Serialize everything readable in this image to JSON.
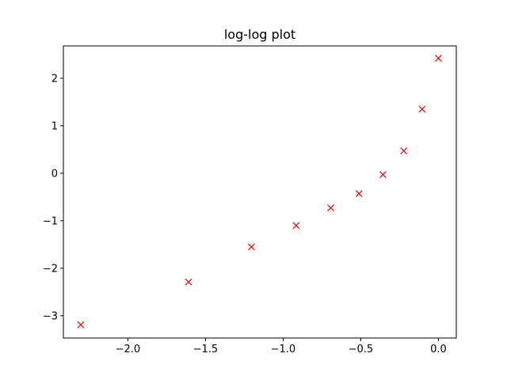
{
  "chart_data": {
    "type": "scatter",
    "title": "log-log plot",
    "xlabel": "",
    "ylabel": "",
    "xlim": [
      -2.415,
      0.115
    ],
    "ylim": [
      -3.47,
      2.68
    ],
    "marker": "x",
    "marker_color": "#ff0000",
    "grid": false,
    "x_ticks": [
      -2.0,
      -1.5,
      -1.0,
      -0.5,
      0.0
    ],
    "x_tick_labels": [
      "−2.0",
      "−1.5",
      "−1.0",
      "−0.5",
      "0.0"
    ],
    "y_ticks": [
      2,
      1,
      0,
      -1,
      -2,
      -3
    ],
    "y_tick_labels": [
      "2",
      "1",
      "0",
      "−1",
      "−2",
      "−3"
    ],
    "points": [
      {
        "x": -2.303,
        "y": -3.19
      },
      {
        "x": -1.609,
        "y": -2.29
      },
      {
        "x": -1.204,
        "y": -1.55
      },
      {
        "x": -0.916,
        "y": -1.1
      },
      {
        "x": -0.693,
        "y": -0.73
      },
      {
        "x": -0.511,
        "y": -0.43
      },
      {
        "x": -0.357,
        "y": -0.03
      },
      {
        "x": -0.223,
        "y": 0.47
      },
      {
        "x": -0.105,
        "y": 1.35
      },
      {
        "x": 0.0,
        "y": 2.42
      }
    ]
  }
}
